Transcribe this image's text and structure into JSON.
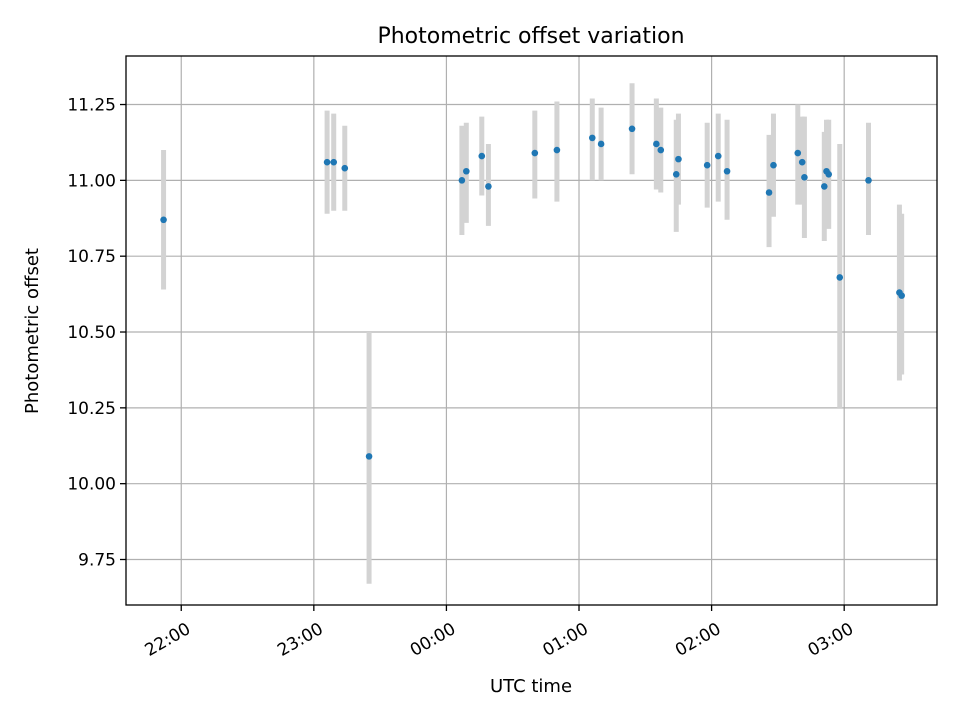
{
  "chart_data": {
    "type": "scatter",
    "title": "Photometric offset variation",
    "xlabel": "UTC time",
    "ylabel": "Photometric offset",
    "x_unit": "UTC time (hh:mm)",
    "xlim": [
      "21:35",
      "03:42"
    ],
    "ylim": [
      9.6,
      11.41
    ],
    "xticks": [
      "22:00",
      "23:00",
      "00:00",
      "01:00",
      "02:00",
      "03:00"
    ],
    "yticks": [
      "9.75",
      "10.00",
      "10.25",
      "10.50",
      "10.75",
      "11.00",
      "11.25"
    ],
    "grid": true,
    "marker_color": "#1f77b4",
    "errorbar_color": "#d3d3d3",
    "points": [
      {
        "t": "21:52",
        "y": 10.87,
        "lo": 10.64,
        "hi": 11.1
      },
      {
        "t": "23:06",
        "y": 11.06,
        "lo": 10.89,
        "hi": 11.23
      },
      {
        "t": "23:09",
        "y": 11.06,
        "lo": 10.9,
        "hi": 11.22
      },
      {
        "t": "23:14",
        "y": 11.04,
        "lo": 10.9,
        "hi": 11.18
      },
      {
        "t": "23:25",
        "y": 10.09,
        "lo": 9.67,
        "hi": 10.5
      },
      {
        "t": "00:07",
        "y": 11.0,
        "lo": 10.82,
        "hi": 11.18
      },
      {
        "t": "00:09",
        "y": 11.03,
        "lo": 10.86,
        "hi": 11.19
      },
      {
        "t": "00:16",
        "y": 11.08,
        "lo": 10.95,
        "hi": 11.21
      },
      {
        "t": "00:19",
        "y": 10.98,
        "lo": 10.85,
        "hi": 11.12
      },
      {
        "t": "00:40",
        "y": 11.09,
        "lo": 10.94,
        "hi": 11.23
      },
      {
        "t": "00:50",
        "y": 11.1,
        "lo": 10.93,
        "hi": 11.26
      },
      {
        "t": "01:06",
        "y": 11.14,
        "lo": 11.0,
        "hi": 11.27
      },
      {
        "t": "01:10",
        "y": 11.12,
        "lo": 11.0,
        "hi": 11.24
      },
      {
        "t": "01:24",
        "y": 11.17,
        "lo": 11.02,
        "hi": 11.32
      },
      {
        "t": "01:35",
        "y": 11.12,
        "lo": 10.97,
        "hi": 11.27
      },
      {
        "t": "01:37",
        "y": 11.1,
        "lo": 10.96,
        "hi": 11.24
      },
      {
        "t": "01:44",
        "y": 11.02,
        "lo": 10.83,
        "hi": 11.2
      },
      {
        "t": "01:45",
        "y": 11.07,
        "lo": 10.92,
        "hi": 11.22
      },
      {
        "t": "01:58",
        "y": 11.05,
        "lo": 10.91,
        "hi": 11.19
      },
      {
        "t": "02:03",
        "y": 11.08,
        "lo": 10.93,
        "hi": 11.22
      },
      {
        "t": "02:07",
        "y": 11.03,
        "lo": 10.87,
        "hi": 11.2
      },
      {
        "t": "02:26",
        "y": 10.96,
        "lo": 10.78,
        "hi": 11.15
      },
      {
        "t": "02:28",
        "y": 11.05,
        "lo": 10.88,
        "hi": 11.22
      },
      {
        "t": "02:39",
        "y": 11.09,
        "lo": 10.92,
        "hi": 11.25
      },
      {
        "t": "02:41",
        "y": 11.06,
        "lo": 10.92,
        "hi": 11.21
      },
      {
        "t": "02:42",
        "y": 11.01,
        "lo": 10.81,
        "hi": 11.21
      },
      {
        "t": "02:51",
        "y": 10.98,
        "lo": 10.8,
        "hi": 11.16
      },
      {
        "t": "02:52",
        "y": 11.03,
        "lo": 10.85,
        "hi": 11.2
      },
      {
        "t": "02:53",
        "y": 11.02,
        "lo": 10.84,
        "hi": 11.2
      },
      {
        "t": "02:58",
        "y": 10.68,
        "lo": 10.25,
        "hi": 11.12
      },
      {
        "t": "03:11",
        "y": 11.0,
        "lo": 10.82,
        "hi": 11.19
      },
      {
        "t": "03:25",
        "y": 10.63,
        "lo": 10.34,
        "hi": 10.92
      },
      {
        "t": "03:26",
        "y": 10.62,
        "lo": 10.36,
        "hi": 10.89
      }
    ]
  }
}
